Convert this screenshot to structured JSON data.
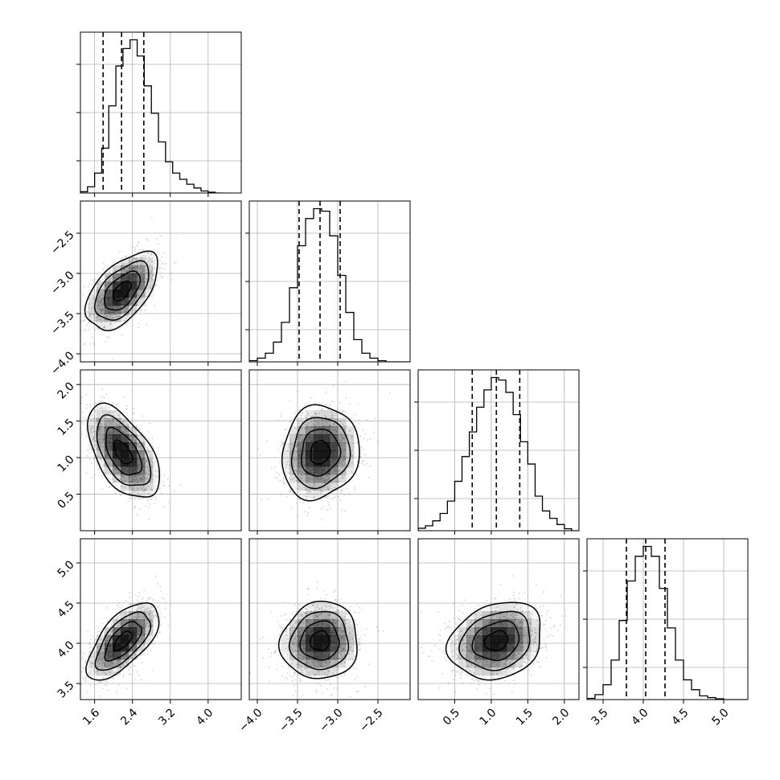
{
  "chart_data": {
    "type": "corner",
    "title": "",
    "parameters": [
      {
        "label": "",
        "range": [
          1.3,
          4.7
        ],
        "ticks": [
          1.6,
          2.4,
          3.2,
          4.0
        ],
        "tick_labels": [
          "1.6",
          "2.4",
          "3.2",
          "4.0"
        ],
        "quantiles": [
          1.78,
          2.17,
          2.64
        ],
        "hist_bins": [
          1.3,
          1.45,
          1.6,
          1.75,
          1.9,
          2.05,
          2.2,
          2.35,
          2.5,
          2.65,
          2.8,
          2.95,
          3.1,
          3.25,
          3.4,
          3.55,
          3.7,
          3.85,
          4.0,
          4.15
        ],
        "hist_values": [
          0.5,
          2.5,
          8.0,
          18.0,
          35.0,
          51.0,
          58.0,
          61.5,
          55.0,
          43.0,
          32.0,
          20.5,
          12.5,
          8.0,
          5.5,
          3.5,
          2.0,
          0.8,
          0.3,
          0.0
        ]
      },
      {
        "label": "",
        "range": [
          -4.1,
          -2.1
        ],
        "ticks": [
          -4.0,
          -3.5,
          -3.0,
          -2.5
        ],
        "tick_labels": [
          "−4.0",
          "−3.5",
          "−3.0",
          "−2.5"
        ],
        "quantiles": [
          -3.48,
          -3.22,
          -2.97
        ],
        "hist_bins": [
          -4.1,
          -4.0,
          -3.9,
          -3.8,
          -3.7,
          -3.6,
          -3.5,
          -3.4,
          -3.3,
          -3.2,
          -3.1,
          -3.0,
          -2.9,
          -2.8,
          -2.7,
          -2.6,
          -2.5,
          -2.4,
          -2.3,
          -2.2
        ],
        "hist_values": [
          0.5,
          1.5,
          3.5,
          8.0,
          16.0,
          30.0,
          47.0,
          58.0,
          62.0,
          61.0,
          51.0,
          35.0,
          20.0,
          9.0,
          3.5,
          1.5,
          0.5,
          0.0,
          0.0,
          0.0
        ]
      },
      {
        "label": "",
        "range": [
          0.0,
          2.2
        ],
        "ticks": [
          0.5,
          1.0,
          1.5,
          2.0
        ],
        "tick_labels": [
          "0.5",
          "1.0",
          "1.5",
          "2.0"
        ],
        "quantiles": [
          0.74,
          1.07,
          1.39
        ],
        "hist_bins": [
          0.0,
          0.1,
          0.2,
          0.3,
          0.4,
          0.5,
          0.6,
          0.7,
          0.8,
          0.9,
          1.0,
          1.1,
          1.2,
          1.3,
          1.4,
          1.5,
          1.6,
          1.7,
          1.8,
          1.9,
          2.0,
          2.1
        ],
        "hist_values": [
          1.0,
          2.0,
          4.0,
          7.0,
          12.0,
          20.0,
          30.0,
          40.0,
          50.0,
          57.0,
          62.0,
          61.0,
          56.0,
          47.0,
          36.0,
          27.0,
          14.0,
          8.0,
          5.0,
          2.5,
          0.8,
          0.0
        ]
      },
      {
        "label": "",
        "range": [
          3.3,
          5.3
        ],
        "ticks": [
          3.5,
          4.0,
          4.5,
          5.0
        ],
        "tick_labels": [
          "3.5",
          "4.0",
          "4.5",
          "5.0"
        ],
        "quantiles": [
          3.79,
          4.03,
          4.27
        ],
        "hist_bins": [
          3.3,
          3.4,
          3.5,
          3.6,
          3.7,
          3.8,
          3.9,
          4.0,
          4.1,
          4.2,
          4.3,
          4.4,
          4.5,
          4.6,
          4.7,
          4.8,
          4.9,
          5.0,
          5.1,
          5.2
        ],
        "hist_values": [
          0.5,
          2.0,
          6.0,
          16.0,
          32.0,
          48.0,
          58.0,
          62.0,
          58.0,
          45.0,
          29.0,
          16.0,
          8.0,
          4.0,
          1.5,
          0.8,
          0.3,
          0.0,
          0.0,
          0.0
        ]
      }
    ],
    "pair_panels": [
      {
        "x": 0,
        "y": 1,
        "center": [
          2.18,
          -3.22
        ],
        "sigma": [
          0.38,
          0.24
        ],
        "rho": 0.55
      },
      {
        "x": 0,
        "y": 2,
        "center": [
          2.2,
          1.07
        ],
        "sigma": [
          0.38,
          0.32
        ],
        "rho": -0.55
      },
      {
        "x": 1,
        "y": 2,
        "center": [
          -3.22,
          1.07
        ],
        "sigma": [
          0.24,
          0.32
        ],
        "rho": 0.1
      },
      {
        "x": 0,
        "y": 3,
        "center": [
          2.2,
          4.03
        ],
        "sigma": [
          0.38,
          0.24
        ],
        "rho": 0.65
      },
      {
        "x": 1,
        "y": 3,
        "center": [
          -3.22,
          4.03
        ],
        "sigma": [
          0.24,
          0.24
        ],
        "rho": 0.05
      },
      {
        "x": 2,
        "y": 3,
        "center": [
          1.07,
          4.03
        ],
        "sigma": [
          0.32,
          0.24
        ],
        "rho": 0.2
      }
    ],
    "contour_levels": [
      0.5,
      1.0,
      1.5,
      2.0
    ],
    "grid": true,
    "colors": {
      "line": "#000000",
      "grid": "#b0b0b0",
      "points": "#9a9a9a",
      "density": "#000000"
    }
  }
}
